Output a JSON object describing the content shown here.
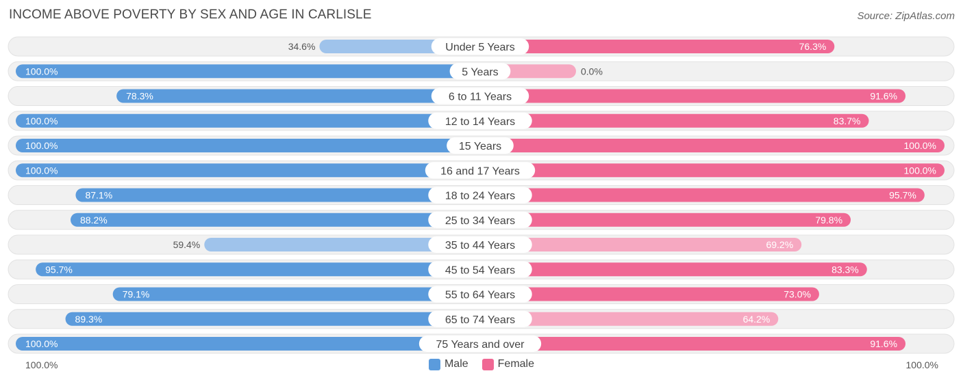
{
  "header": {
    "title": "INCOME ABOVE POVERTY BY SEX AND AGE IN CARLISLE",
    "source": "Source: ZipAtlas.com"
  },
  "axis": {
    "left_label": "100.0%",
    "right_label": "100.0%"
  },
  "legend": {
    "male_label": "Male",
    "female_label": "Female"
  },
  "colors": {
    "male_strong": "#5b9bdc",
    "male_light": "#9fc3eb",
    "female_strong": "#f06894",
    "female_light": "#f6a8c1",
    "track": "#f1f1f1"
  },
  "chart_data": {
    "type": "bar",
    "orientation": "horizontal-diverging",
    "title": "INCOME ABOVE POVERTY BY SEX AND AGE IN CARLISLE",
    "categories": [
      "Under 5 Years",
      "5 Years",
      "6 to 11 Years",
      "12 to 14 Years",
      "15 Years",
      "16 and 17 Years",
      "18 to 24 Years",
      "25 to 34 Years",
      "35 to 44 Years",
      "45 to 54 Years",
      "55 to 64 Years",
      "65 to 74 Years",
      "75 Years and over"
    ],
    "series": [
      {
        "name": "Male",
        "values": [
          34.6,
          100.0,
          78.3,
          100.0,
          100.0,
          100.0,
          87.1,
          88.2,
          59.4,
          95.7,
          79.1,
          89.3,
          100.0
        ],
        "labels": [
          "34.6%",
          "100.0%",
          "78.3%",
          "100.0%",
          "100.0%",
          "100.0%",
          "87.1%",
          "88.2%",
          "59.4%",
          "95.7%",
          "79.1%",
          "89.3%",
          "100.0%"
        ]
      },
      {
        "name": "Female",
        "values": [
          76.3,
          0.0,
          91.6,
          83.7,
          100.0,
          100.0,
          95.7,
          79.8,
          69.2,
          83.3,
          73.0,
          64.2,
          91.6
        ],
        "labels": [
          "76.3%",
          "0.0%",
          "91.6%",
          "83.7%",
          "100.0%",
          "100.0%",
          "95.7%",
          "79.8%",
          "69.2%",
          "83.3%",
          "73.0%",
          "64.2%",
          "91.6%"
        ]
      }
    ],
    "xlim": [
      0,
      100
    ],
    "legend_position": "bottom-center"
  }
}
